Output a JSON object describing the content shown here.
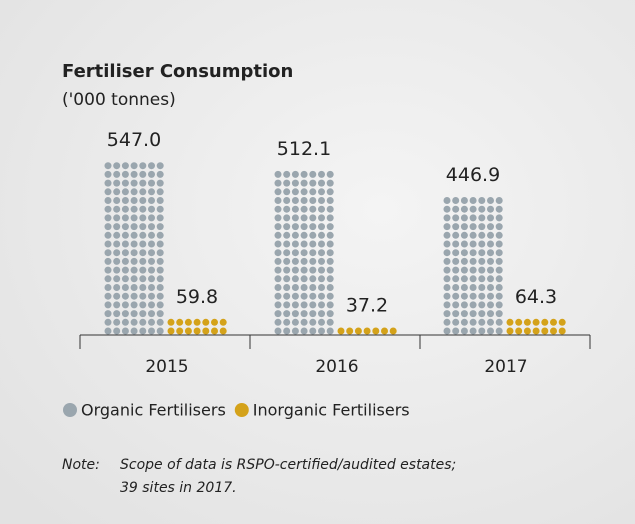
{
  "chart_data": {
    "type": "dotbar",
    "title": "Fertiliser Consumption",
    "subtitle": "('000 tonnes)",
    "categories": [
      "2015",
      "2016",
      "2017"
    ],
    "series": [
      {
        "name": "Organic Fertilisers",
        "color": "#9aa6ae",
        "values": [
          547.0,
          512.1,
          446.9
        ],
        "value_labels": [
          "547.0",
          "512.1",
          "446.9"
        ]
      },
      {
        "name": "Inorganic Fertilisers",
        "color": "#d4a21a",
        "values": [
          59.8,
          37.2,
          64.3
        ]
      }
    ],
    "note_label": "Note:",
    "note": [
      "Scope of data is RSPO-certified/audited estates;",
      "39 sites in 2017."
    ]
  }
}
